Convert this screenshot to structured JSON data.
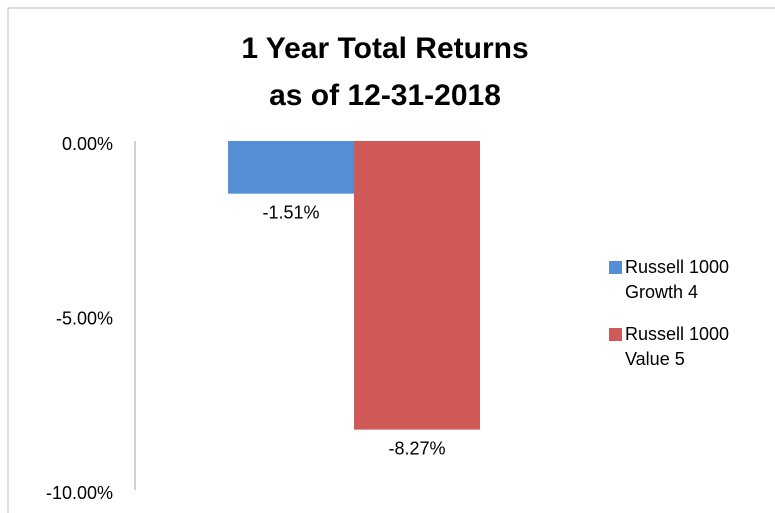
{
  "chart_data": {
    "type": "bar",
    "title": [
      "1 Year Total Returns",
      "as of 12-31-2018"
    ],
    "categories": [
      null
    ],
    "series": [
      {
        "name": "Russell 1000 Growth 4",
        "color": "#558ed5",
        "values": [
          -1.51
        ],
        "value_labels": [
          "-1.51%"
        ]
      },
      {
        "name": "Russell 1000 Value 5",
        "color": "#d05a57",
        "values": [
          -8.27
        ],
        "value_labels": [
          "-8.27%"
        ]
      }
    ],
    "ylim": [
      -10,
      0
    ],
    "yticks": [
      {
        "value": 0,
        "label": "0.00%"
      },
      {
        "value": -5,
        "label": "-5.00%"
      },
      {
        "value": -10,
        "label": "-10.00%"
      }
    ],
    "legend": "right"
  }
}
